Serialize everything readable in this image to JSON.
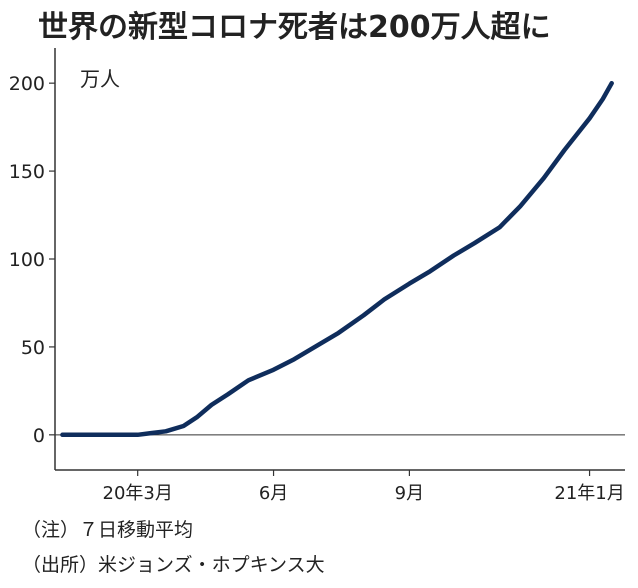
{
  "title": "世界の新型コロナ死者は200万人超に",
  "notes": {
    "note": "（注）７日移動平均",
    "source": "（出所）米ジョンズ・ホプキンス大"
  },
  "colors": {
    "line": "#0f2d5c",
    "axis": "#333333"
  },
  "chart_data": {
    "type": "line",
    "title": "世界の新型コロナ死者は200万人超に",
    "unit_label": "万人",
    "ylim": [
      -20,
      220
    ],
    "yticks": [
      0,
      50,
      100,
      150,
      200
    ],
    "ytick_labels": [
      "0",
      "50",
      "100",
      "150",
      "200"
    ],
    "xlim": [
      "2020-01-05",
      "2021-01-25"
    ],
    "xticks": [
      "2020-03-01",
      "2020-06-01",
      "2020-09-01",
      "2021-01-01"
    ],
    "xtick_labels": [
      "20年3月",
      "6月",
      "9月",
      "21年1月"
    ],
    "grid": false,
    "zero_line": true,
    "series": [
      {
        "color": "#0f2d5c",
        "x": [
          "2020-01-10",
          "2020-02-01",
          "2020-03-01",
          "2020-03-10",
          "2020-03-20",
          "2020-04-01",
          "2020-04-10",
          "2020-04-20",
          "2020-05-01",
          "2020-05-15",
          "2020-06-01",
          "2020-06-15",
          "2020-07-01",
          "2020-07-15",
          "2020-08-01",
          "2020-08-15",
          "2020-09-01",
          "2020-09-15",
          "2020-10-01",
          "2020-10-15",
          "2020-11-01",
          "2020-11-15",
          "2020-12-01",
          "2020-12-15",
          "2021-01-01",
          "2021-01-10",
          "2021-01-16"
        ],
        "y": [
          0,
          0,
          0,
          1,
          2,
          5,
          10,
          17,
          23,
          31,
          37,
          43,
          51,
          58,
          68,
          77,
          86,
          93,
          102,
          109,
          118,
          130,
          146,
          162,
          180,
          191,
          200
        ]
      }
    ]
  }
}
